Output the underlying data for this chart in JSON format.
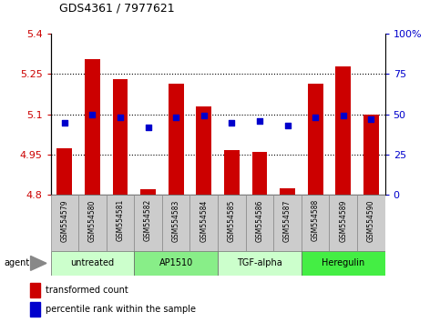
{
  "title": "GDS4361 / 7977621",
  "samples": [
    "GSM554579",
    "GSM554580",
    "GSM554581",
    "GSM554582",
    "GSM554583",
    "GSM554584",
    "GSM554585",
    "GSM554586",
    "GSM554587",
    "GSM554588",
    "GSM554589",
    "GSM554590"
  ],
  "bar_values": [
    4.975,
    5.305,
    5.23,
    4.82,
    5.215,
    5.13,
    4.965,
    4.96,
    4.825,
    5.215,
    5.28,
    5.1
  ],
  "percentile_values": [
    45,
    50,
    48,
    42,
    48,
    49,
    45,
    46,
    43,
    48,
    49,
    47
  ],
  "bar_color": "#cc0000",
  "percentile_color": "#0000cc",
  "bar_bottom": 4.8,
  "ylim_left": [
    4.8,
    5.4
  ],
  "ylim_right": [
    0,
    100
  ],
  "yticks_left": [
    4.8,
    4.95,
    5.1,
    5.25,
    5.4
  ],
  "yticks_right": [
    0,
    25,
    50,
    75,
    100
  ],
  "ytick_labels_left": [
    "4.8",
    "4.95",
    "5.1",
    "5.25",
    "5.4"
  ],
  "ytick_labels_right": [
    "0",
    "25",
    "50",
    "75",
    "100%"
  ],
  "hlines": [
    4.95,
    5.1,
    5.25
  ],
  "agents": [
    {
      "label": "untreated",
      "start": 0,
      "end": 3,
      "color": "#ccffcc"
    },
    {
      "label": "AP1510",
      "start": 3,
      "end": 6,
      "color": "#88ee88"
    },
    {
      "label": "TGF-alpha",
      "start": 6,
      "end": 9,
      "color": "#ccffcc"
    },
    {
      "label": "Heregulin",
      "start": 9,
      "end": 12,
      "color": "#44ee44"
    }
  ],
  "legend_bar_label": "transformed count",
  "legend_pct_label": "percentile rank within the sample",
  "agent_label": "agent",
  "background_color": "#ffffff",
  "plot_bg_color": "#ffffff",
  "tick_color_left": "#cc0000",
  "tick_color_right": "#0000cc",
  "grid_color": "#cccccc",
  "label_bg_color": "#cccccc"
}
